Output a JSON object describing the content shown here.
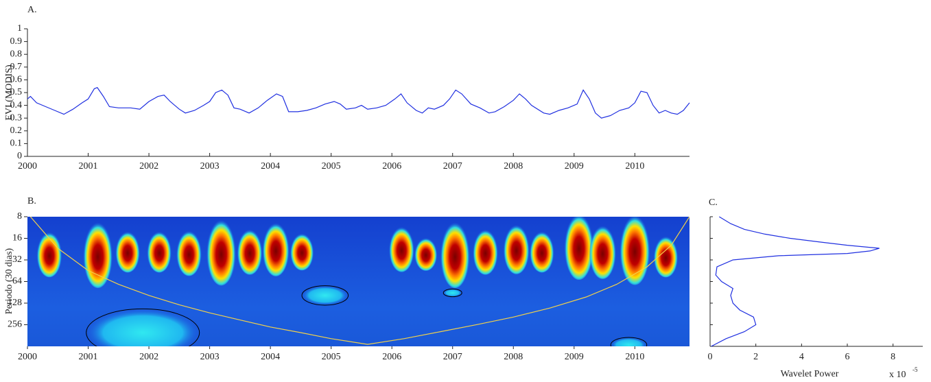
{
  "chart_data": [
    {
      "type": "line",
      "title": "A.",
      "ylabel": "EVI (MODIS)",
      "xlim": [
        2000,
        2010.9
      ],
      "xticks": [
        2000,
        2001,
        2002,
        2003,
        2004,
        2005,
        2006,
        2007,
        2008,
        2009,
        2010
      ],
      "ylim": [
        0,
        1
      ],
      "yticks": [
        0,
        0.1,
        0.2,
        0.3,
        0.4,
        0.5,
        0.6,
        0.7,
        0.8,
        0.9,
        1
      ],
      "series": [
        {
          "color": "#1f2fe0",
          "x": [
            2000.0,
            2000.05,
            2000.15,
            2000.3,
            2000.45,
            2000.6,
            2000.75,
            2000.9,
            2001.0,
            2001.1,
            2001.15,
            2001.25,
            2001.35,
            2001.5,
            2001.7,
            2001.85,
            2002.0,
            2002.15,
            2002.25,
            2002.35,
            2002.5,
            2002.6,
            2002.75,
            2002.9,
            2003.0,
            2003.1,
            2003.2,
            2003.3,
            2003.4,
            2003.5,
            2003.65,
            2003.8,
            2003.95,
            2004.1,
            2004.2,
            2004.3,
            2004.45,
            2004.6,
            2004.75,
            2004.9,
            2005.05,
            2005.15,
            2005.25,
            2005.4,
            2005.5,
            2005.6,
            2005.75,
            2005.9,
            2006.05,
            2006.15,
            2006.25,
            2006.4,
            2006.5,
            2006.6,
            2006.7,
            2006.85,
            2006.95,
            2007.05,
            2007.15,
            2007.3,
            2007.45,
            2007.6,
            2007.7,
            2007.85,
            2008.0,
            2008.1,
            2008.2,
            2008.3,
            2008.5,
            2008.6,
            2008.75,
            2008.9,
            2009.05,
            2009.15,
            2009.25,
            2009.35,
            2009.45,
            2009.6,
            2009.75,
            2009.9,
            2010.0,
            2010.1,
            2010.2,
            2010.3,
            2010.4,
            2010.5,
            2010.6,
            2010.7,
            2010.8,
            2010.9
          ],
          "values": [
            0.45,
            0.47,
            0.42,
            0.39,
            0.36,
            0.33,
            0.37,
            0.42,
            0.45,
            0.53,
            0.54,
            0.47,
            0.39,
            0.38,
            0.38,
            0.37,
            0.43,
            0.47,
            0.48,
            0.43,
            0.37,
            0.34,
            0.36,
            0.4,
            0.43,
            0.5,
            0.52,
            0.48,
            0.38,
            0.37,
            0.34,
            0.38,
            0.44,
            0.49,
            0.47,
            0.35,
            0.35,
            0.36,
            0.38,
            0.41,
            0.43,
            0.41,
            0.37,
            0.38,
            0.4,
            0.37,
            0.38,
            0.4,
            0.45,
            0.49,
            0.42,
            0.36,
            0.34,
            0.38,
            0.37,
            0.4,
            0.45,
            0.52,
            0.49,
            0.41,
            0.38,
            0.34,
            0.35,
            0.39,
            0.44,
            0.49,
            0.45,
            0.4,
            0.34,
            0.33,
            0.36,
            0.38,
            0.41,
            0.52,
            0.45,
            0.34,
            0.3,
            0.32,
            0.36,
            0.38,
            0.42,
            0.51,
            0.5,
            0.4,
            0.34,
            0.36,
            0.34,
            0.33,
            0.36,
            0.42
          ]
        }
      ]
    },
    {
      "type": "wavelet",
      "title": "B.",
      "ylabel": "Periodo (30 dias)",
      "xlim": [
        2000,
        2010.9
      ],
      "xticks": [
        2000,
        2001,
        2002,
        2003,
        2004,
        2005,
        2006,
        2007,
        2008,
        2009,
        2010
      ],
      "ylim": [
        8,
        512
      ],
      "yscale": "log2",
      "yticks": [
        8,
        16,
        32,
        64,
        128,
        256
      ],
      "blobs": [
        {
          "x": 2000.36,
          "period": 26,
          "size": 1.1
        },
        {
          "x": 2001.16,
          "period": 26,
          "size": 1.6
        },
        {
          "x": 2001.65,
          "period": 24,
          "size": 1.0
        },
        {
          "x": 2002.17,
          "period": 24,
          "size": 1.0
        },
        {
          "x": 2002.66,
          "period": 25,
          "size": 1.1
        },
        {
          "x": 2003.19,
          "period": 24,
          "size": 1.6
        },
        {
          "x": 2003.66,
          "period": 24,
          "size": 1.1
        },
        {
          "x": 2004.09,
          "period": 22,
          "size": 1.3
        },
        {
          "x": 2004.52,
          "period": 24,
          "size": 0.9
        },
        {
          "x": 2006.16,
          "period": 22,
          "size": 1.1
        },
        {
          "x": 2006.56,
          "period": 26,
          "size": 0.8
        },
        {
          "x": 2007.04,
          "period": 26,
          "size": 1.6
        },
        {
          "x": 2007.54,
          "period": 24,
          "size": 1.1
        },
        {
          "x": 2008.05,
          "period": 22,
          "size": 1.2
        },
        {
          "x": 2008.47,
          "period": 24,
          "size": 1.0
        },
        {
          "x": 2009.08,
          "period": 20,
          "size": 1.6
        },
        {
          "x": 2009.47,
          "period": 24,
          "size": 1.3
        },
        {
          "x": 2010.0,
          "period": 22,
          "size": 1.7
        },
        {
          "x": 2010.51,
          "period": 28,
          "size": 1.0
        }
      ],
      "regions": [
        {
          "x": 2004.9,
          "period": 100,
          "size": 0.45
        },
        {
          "x": 2007.0,
          "period": 92,
          "size": 0.18
        },
        {
          "x": 2001.9,
          "period": 330,
          "size": 1.1
        },
        {
          "x": 2009.9,
          "period": 490,
          "size": 0.35
        }
      ],
      "coi": {
        "color": "#f2d14a",
        "x": [
          2000.05,
          2000.5,
          2001.0,
          2001.5,
          2002.0,
          2002.5,
          2003.0,
          2003.5,
          2004.0,
          2004.5,
          2005.0,
          2005.6,
          2006.2,
          2006.8,
          2007.4,
          2008.0,
          2008.6,
          2009.2,
          2009.7,
          2010.2,
          2010.6,
          2010.9
        ],
        "values": [
          8,
          22,
          45,
          70,
          100,
          135,
          175,
          220,
          275,
          330,
          400,
          480,
          400,
          320,
          255,
          200,
          150,
          105,
          70,
          40,
          20,
          8
        ]
      }
    },
    {
      "type": "profile",
      "title": "C.",
      "xlabel": "Wavelet Power",
      "multiplier": "x 10",
      "multiplier_exp": "-5",
      "xlim": [
        0,
        9.3
      ],
      "xticks": [
        0,
        2,
        4,
        6,
        8
      ],
      "ylim": [
        8,
        512
      ],
      "yscale": "log2",
      "yticks": [
        8,
        16,
        32,
        64,
        128,
        256
      ],
      "series": [
        {
          "color": "#1f2fe0",
          "period": [
            8,
            10,
            12,
            14,
            16,
            18,
            20,
            22,
            24,
            26,
            28,
            32,
            40,
            52,
            64,
            80,
            100,
            128,
            160,
            200,
            256,
            320,
            400,
            512
          ],
          "power": [
            0.4,
            0.9,
            1.5,
            2.4,
            3.5,
            4.8,
            6.0,
            7.4,
            7.0,
            6.0,
            3.0,
            1.0,
            0.3,
            0.25,
            0.5,
            1.0,
            0.9,
            1.0,
            1.3,
            1.9,
            2.0,
            1.5,
            0.7,
            0.05
          ]
        }
      ]
    }
  ]
}
